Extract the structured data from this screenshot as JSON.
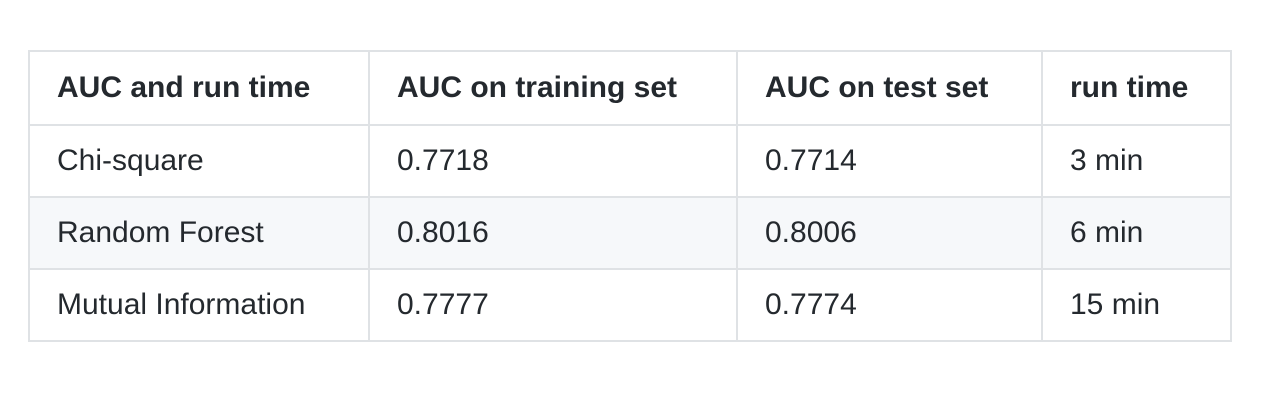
{
  "table": {
    "headers": [
      "AUC and run time",
      "AUC on training set",
      "AUC on test set",
      "run time"
    ],
    "rows": [
      [
        "Chi-square",
        "0.7718",
        "0.7714",
        "3 min"
      ],
      [
        "Random Forest",
        "0.8016",
        "0.8006",
        "6 min"
      ],
      [
        "Mutual Information",
        "0.7777",
        "0.7774",
        "15 min"
      ]
    ]
  }
}
